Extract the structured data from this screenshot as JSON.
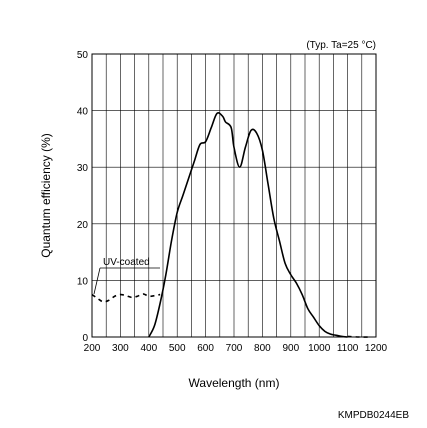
{
  "chart_data": {
    "type": "line",
    "title": "",
    "condition_note": "(Typ. Ta=25 °C)",
    "xlabel": "Wavelength (nm)",
    "ylabel": "Quantum efficiency (%)",
    "xlim": [
      200,
      1200
    ],
    "ylim": [
      0,
      50
    ],
    "x_ticks": [
      200,
      300,
      400,
      500,
      600,
      700,
      800,
      900,
      1000,
      1100,
      1200
    ],
    "y_ticks": [
      0,
      10,
      20,
      30,
      40,
      50
    ],
    "grid": true,
    "series": [
      {
        "name": "",
        "style": "solid",
        "x": [
          400,
          420,
          440,
          460,
          480,
          500,
          520,
          540,
          560,
          580,
          600,
          620,
          640,
          660,
          670,
          690,
          700,
          720,
          740,
          760,
          780,
          800,
          820,
          840,
          860,
          880,
          900,
          920,
          940,
          960,
          980,
          1000,
          1020,
          1040,
          1060,
          1080,
          1100
        ],
        "y": [
          0,
          2,
          6,
          11,
          17,
          22,
          25,
          28,
          31,
          34,
          34.5,
          37,
          39.5,
          39,
          38,
          37,
          33.5,
          30,
          33.5,
          36.5,
          36,
          33,
          27,
          21,
          17,
          13,
          11,
          9.5,
          7.5,
          5,
          3.5,
          2,
          1,
          0.5,
          0.3,
          0.1,
          0
        ]
      },
      {
        "name": "UV-coated",
        "style": "dashed",
        "x": [
          200,
          220,
          240,
          260,
          280,
          300,
          320,
          340,
          360,
          380,
          400,
          420,
          440
        ],
        "y": [
          7.5,
          6.8,
          6.2,
          6.5,
          7.2,
          7.5,
          7.3,
          7,
          7.2,
          7.6,
          7.2,
          7.3,
          7.5
        ]
      },
      {
        "name": "",
        "style": "dashed",
        "x": [
          1100,
          1140,
          1180
        ],
        "y": [
          0.1,
          0,
          0
        ]
      }
    ],
    "annotations": [
      {
        "text": "UV-coated",
        "series": "UV-coated"
      }
    ]
  },
  "figure_code": "KMPDB0244EB"
}
